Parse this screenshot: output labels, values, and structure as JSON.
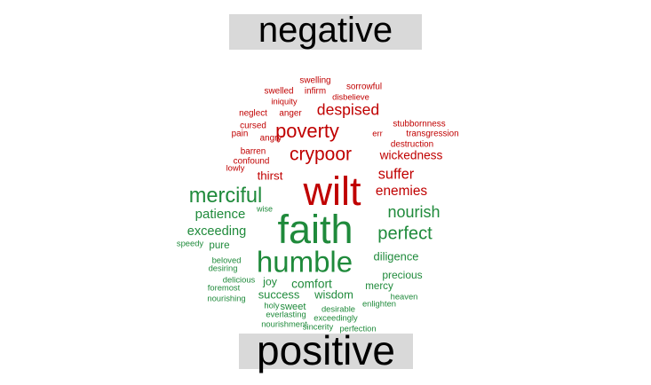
{
  "chart_data": {
    "type": "wordcloud",
    "colors": {
      "negative": "#c00000",
      "positive": "#1f8a3b"
    },
    "groups": [
      {
        "name": "negative",
        "color": "#c00000",
        "words": [
          {
            "text": "wilt",
            "freq": 100
          },
          {
            "text": "poverty",
            "freq": 46
          },
          {
            "text": "crypoor",
            "freq": 44
          },
          {
            "text": "despised",
            "freq": 36
          },
          {
            "text": "suffer",
            "freq": 33
          },
          {
            "text": "enemies",
            "freq": 31
          },
          {
            "text": "wickedness",
            "freq": 27
          },
          {
            "text": "thirst",
            "freq": 26
          },
          {
            "text": "stubbornness",
            "freq": 18
          },
          {
            "text": "transgression",
            "freq": 18
          },
          {
            "text": "destruction",
            "freq": 18
          },
          {
            "text": "sorrowful",
            "freq": 18
          },
          {
            "text": "swelling",
            "freq": 18
          },
          {
            "text": "swelled",
            "freq": 18
          },
          {
            "text": "infirm",
            "freq": 18
          },
          {
            "text": "disbelieve",
            "freq": 17
          },
          {
            "text": "iniquity",
            "freq": 17
          },
          {
            "text": "neglect",
            "freq": 18
          },
          {
            "text": "anger",
            "freq": 18
          },
          {
            "text": "cursed",
            "freq": 18
          },
          {
            "text": "pain",
            "freq": 18
          },
          {
            "text": "angry",
            "freq": 18
          },
          {
            "text": "err",
            "freq": 17
          },
          {
            "text": "barren",
            "freq": 18
          },
          {
            "text": "confound",
            "freq": 18
          },
          {
            "text": "lowly",
            "freq": 17
          }
        ]
      },
      {
        "name": "positive",
        "color": "#1f8a3b",
        "words": [
          {
            "text": "faith",
            "freq": 100
          },
          {
            "text": "humble",
            "freq": 72
          },
          {
            "text": "merciful",
            "freq": 50
          },
          {
            "text": "perfect",
            "freq": 42
          },
          {
            "text": "nourish",
            "freq": 37
          },
          {
            "text": "patience",
            "freq": 30
          },
          {
            "text": "exceeding",
            "freq": 29
          },
          {
            "text": "comfort",
            "freq": 27
          },
          {
            "text": "diligence",
            "freq": 25
          },
          {
            "text": "success",
            "freq": 25
          },
          {
            "text": "wisdom",
            "freq": 25
          },
          {
            "text": "joy",
            "freq": 24
          },
          {
            "text": "precious",
            "freq": 23
          },
          {
            "text": "mercy",
            "freq": 22
          },
          {
            "text": "pure",
            "freq": 22
          },
          {
            "text": "sweet",
            "freq": 21
          },
          {
            "text": "wise",
            "freq": 16
          },
          {
            "text": "speedy",
            "freq": 17
          },
          {
            "text": "beloved",
            "freq": 17
          },
          {
            "text": "desiring",
            "freq": 17
          },
          {
            "text": "delicious",
            "freq": 17
          },
          {
            "text": "foremost",
            "freq": 17
          },
          {
            "text": "nourishing",
            "freq": 17
          },
          {
            "text": "holy",
            "freq": 17
          },
          {
            "text": "everlasting",
            "freq": 17
          },
          {
            "text": "desirable",
            "freq": 17
          },
          {
            "text": "heaven",
            "freq": 17
          },
          {
            "text": "enlighten",
            "freq": 17
          },
          {
            "text": "exceedingly",
            "freq": 17
          },
          {
            "text": "nourishment",
            "freq": 17
          },
          {
            "text": "sincerity",
            "freq": 17
          },
          {
            "text": "perfection",
            "freq": 17
          }
        ]
      }
    ]
  }
}
